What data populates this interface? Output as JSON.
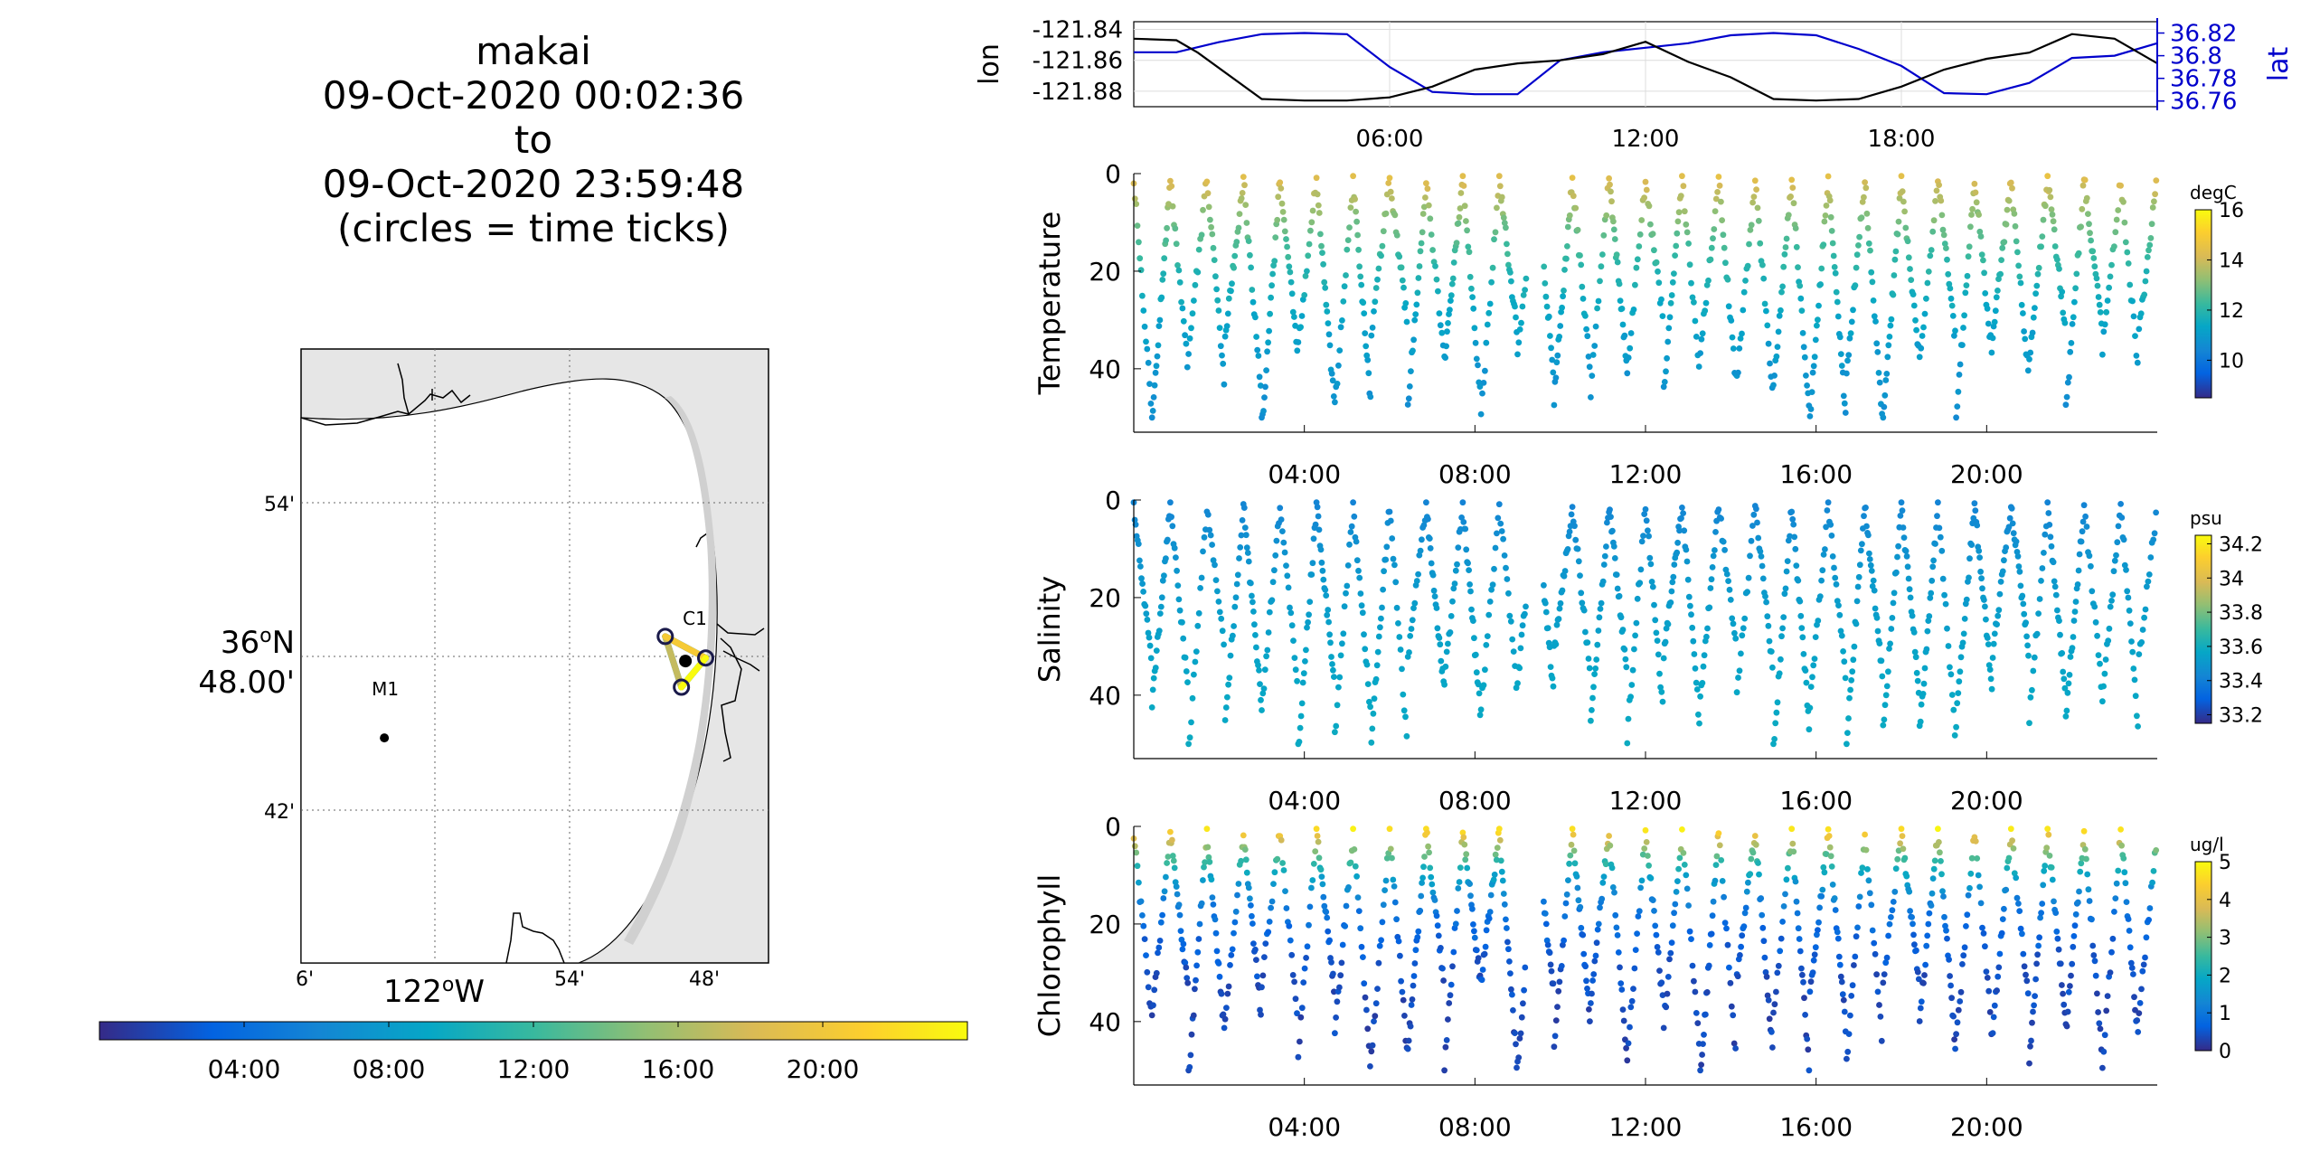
{
  "title_lines": [
    "makai",
    "09-Oct-2020 00:02:36",
    "to",
    "09-Oct-2020 23:59:48",
    "(circles = time ticks)"
  ],
  "map": {
    "lat_ticks": [
      "54'",
      "36°N 48.00'",
      "42'"
    ],
    "lon_ticks": [
      "6'",
      "122°W",
      "54'",
      "48'"
    ],
    "stations": [
      {
        "name": "M1",
        "lon": -122.025,
        "lat": 36.747
      },
      {
        "name": "C1",
        "lon": -121.876,
        "lat": 36.797
      }
    ],
    "track_vertices": [
      {
        "lon": -121.886,
        "lat": 36.813
      },
      {
        "lon": -121.866,
        "lat": 36.799
      },
      {
        "lon": -121.878,
        "lat": 36.78
      }
    ],
    "colorbar": {
      "tick_labels": [
        "04:00",
        "08:00",
        "12:00",
        "16:00",
        "20:00"
      ],
      "colormap": "parula",
      "range": [
        "00:00",
        "24:00"
      ]
    }
  },
  "position_panel": {
    "y_left_label": "lon",
    "y_right_label": "lat",
    "y_left_ticks": [
      "-121.84",
      "-121.86",
      "-121.88"
    ],
    "y_right_ticks": [
      "36.82",
      "36.8",
      "36.78",
      "36.76"
    ],
    "x_ticks": [
      "06:00",
      "12:00",
      "18:00"
    ],
    "lon_color": "#000000",
    "lat_color": "#0000cc"
  },
  "chart_data": [
    {
      "type": "line",
      "x_unit": "hours",
      "xlim": [
        0,
        24
      ],
      "series": [
        {
          "name": "lon",
          "axis": "left",
          "ylim": [
            -121.89,
            -121.835
          ],
          "x": [
            0,
            1,
            1.5,
            3,
            4,
            5,
            6,
            7,
            8,
            9,
            10,
            11,
            12,
            13,
            14,
            15,
            16,
            17,
            18,
            19,
            20,
            21,
            22,
            23,
            24
          ],
          "y": [
            -121.846,
            -121.847,
            -121.855,
            -121.885,
            -121.886,
            -121.886,
            -121.884,
            -121.877,
            -121.866,
            -121.862,
            -121.86,
            -121.856,
            -121.848,
            -121.861,
            -121.871,
            -121.885,
            -121.886,
            -121.885,
            -121.877,
            -121.866,
            -121.859,
            -121.855,
            -121.843,
            -121.846,
            -121.862
          ]
        },
        {
          "name": "lat",
          "axis": "right",
          "ylim": [
            36.755,
            36.83
          ],
          "x": [
            0,
            1,
            2,
            3,
            4,
            5,
            6,
            7,
            8,
            9,
            10,
            11,
            12,
            13,
            14,
            15,
            16,
            17,
            18,
            19,
            20,
            21,
            22,
            23,
            24
          ],
          "y": [
            36.803,
            36.803,
            36.812,
            36.819,
            36.82,
            36.819,
            36.79,
            36.768,
            36.766,
            36.766,
            36.796,
            36.803,
            36.807,
            36.811,
            36.818,
            36.82,
            36.818,
            36.806,
            36.791,
            36.767,
            36.766,
            36.776,
            36.798,
            36.8,
            36.811
          ]
        }
      ]
    },
    {
      "type": "scatter",
      "name": "Temperature",
      "ylabel": "Temperature",
      "x_unit": "hours",
      "xlim": [
        0,
        24
      ],
      "ylim": [
        0,
        53
      ],
      "y_reversed": true,
      "x_ticks": [
        "04:00",
        "08:00",
        "12:00",
        "16:00",
        "20:00"
      ],
      "y_ticks": [
        0,
        20,
        40
      ],
      "gap_hours": [
        9.2,
        9.6
      ],
      "colorbar": {
        "label": "degC",
        "range": [
          8.5,
          16
        ],
        "ticks": [
          10,
          12,
          14,
          16
        ]
      },
      "profile": {
        "surface_value": 14.5,
        "deep_value": 10.2,
        "depth_scale": 22,
        "upper_depth_start": 1,
        "max_depth": 50
      }
    },
    {
      "type": "scatter",
      "name": "Salinity",
      "ylabel": "Salinity",
      "x_unit": "hours",
      "xlim": [
        0,
        24
      ],
      "ylim": [
        0,
        53
      ],
      "y_reversed": true,
      "x_ticks": [
        "04:00",
        "08:00",
        "12:00",
        "16:00",
        "20:00"
      ],
      "y_ticks": [
        0,
        20,
        40
      ],
      "gap_hours": [
        9.2,
        9.6
      ],
      "colorbar": {
        "label": "psu",
        "range": [
          33.15,
          34.25
        ],
        "ticks": [
          33.2,
          33.4,
          33.6,
          33.8,
          34,
          34.2
        ]
      },
      "profile": {
        "surface_value": 33.42,
        "deep_value": 33.62,
        "depth_scale": 30,
        "upper_depth_start": 1,
        "max_depth": 50
      }
    },
    {
      "type": "scatter",
      "name": "Chlorophyll",
      "ylabel": "Chlorophyll",
      "x_unit": "hours",
      "xlim": [
        0,
        24
      ],
      "ylim": [
        0,
        53
      ],
      "y_reversed": true,
      "x_ticks": [
        "04:00",
        "08:00",
        "12:00",
        "16:00",
        "20:00"
      ],
      "y_ticks": [
        0,
        20,
        40
      ],
      "gap_hours": [
        9.2,
        9.6
      ],
      "colorbar": {
        "label": "ug/l",
        "range": [
          0,
          5
        ],
        "ticks": [
          0,
          1,
          2,
          3,
          4,
          5
        ]
      },
      "profile": {
        "surface_value": 5.0,
        "deep_value": 0.3,
        "depth_scale": 9,
        "upper_depth_start": 1,
        "max_depth": 50
      }
    }
  ]
}
